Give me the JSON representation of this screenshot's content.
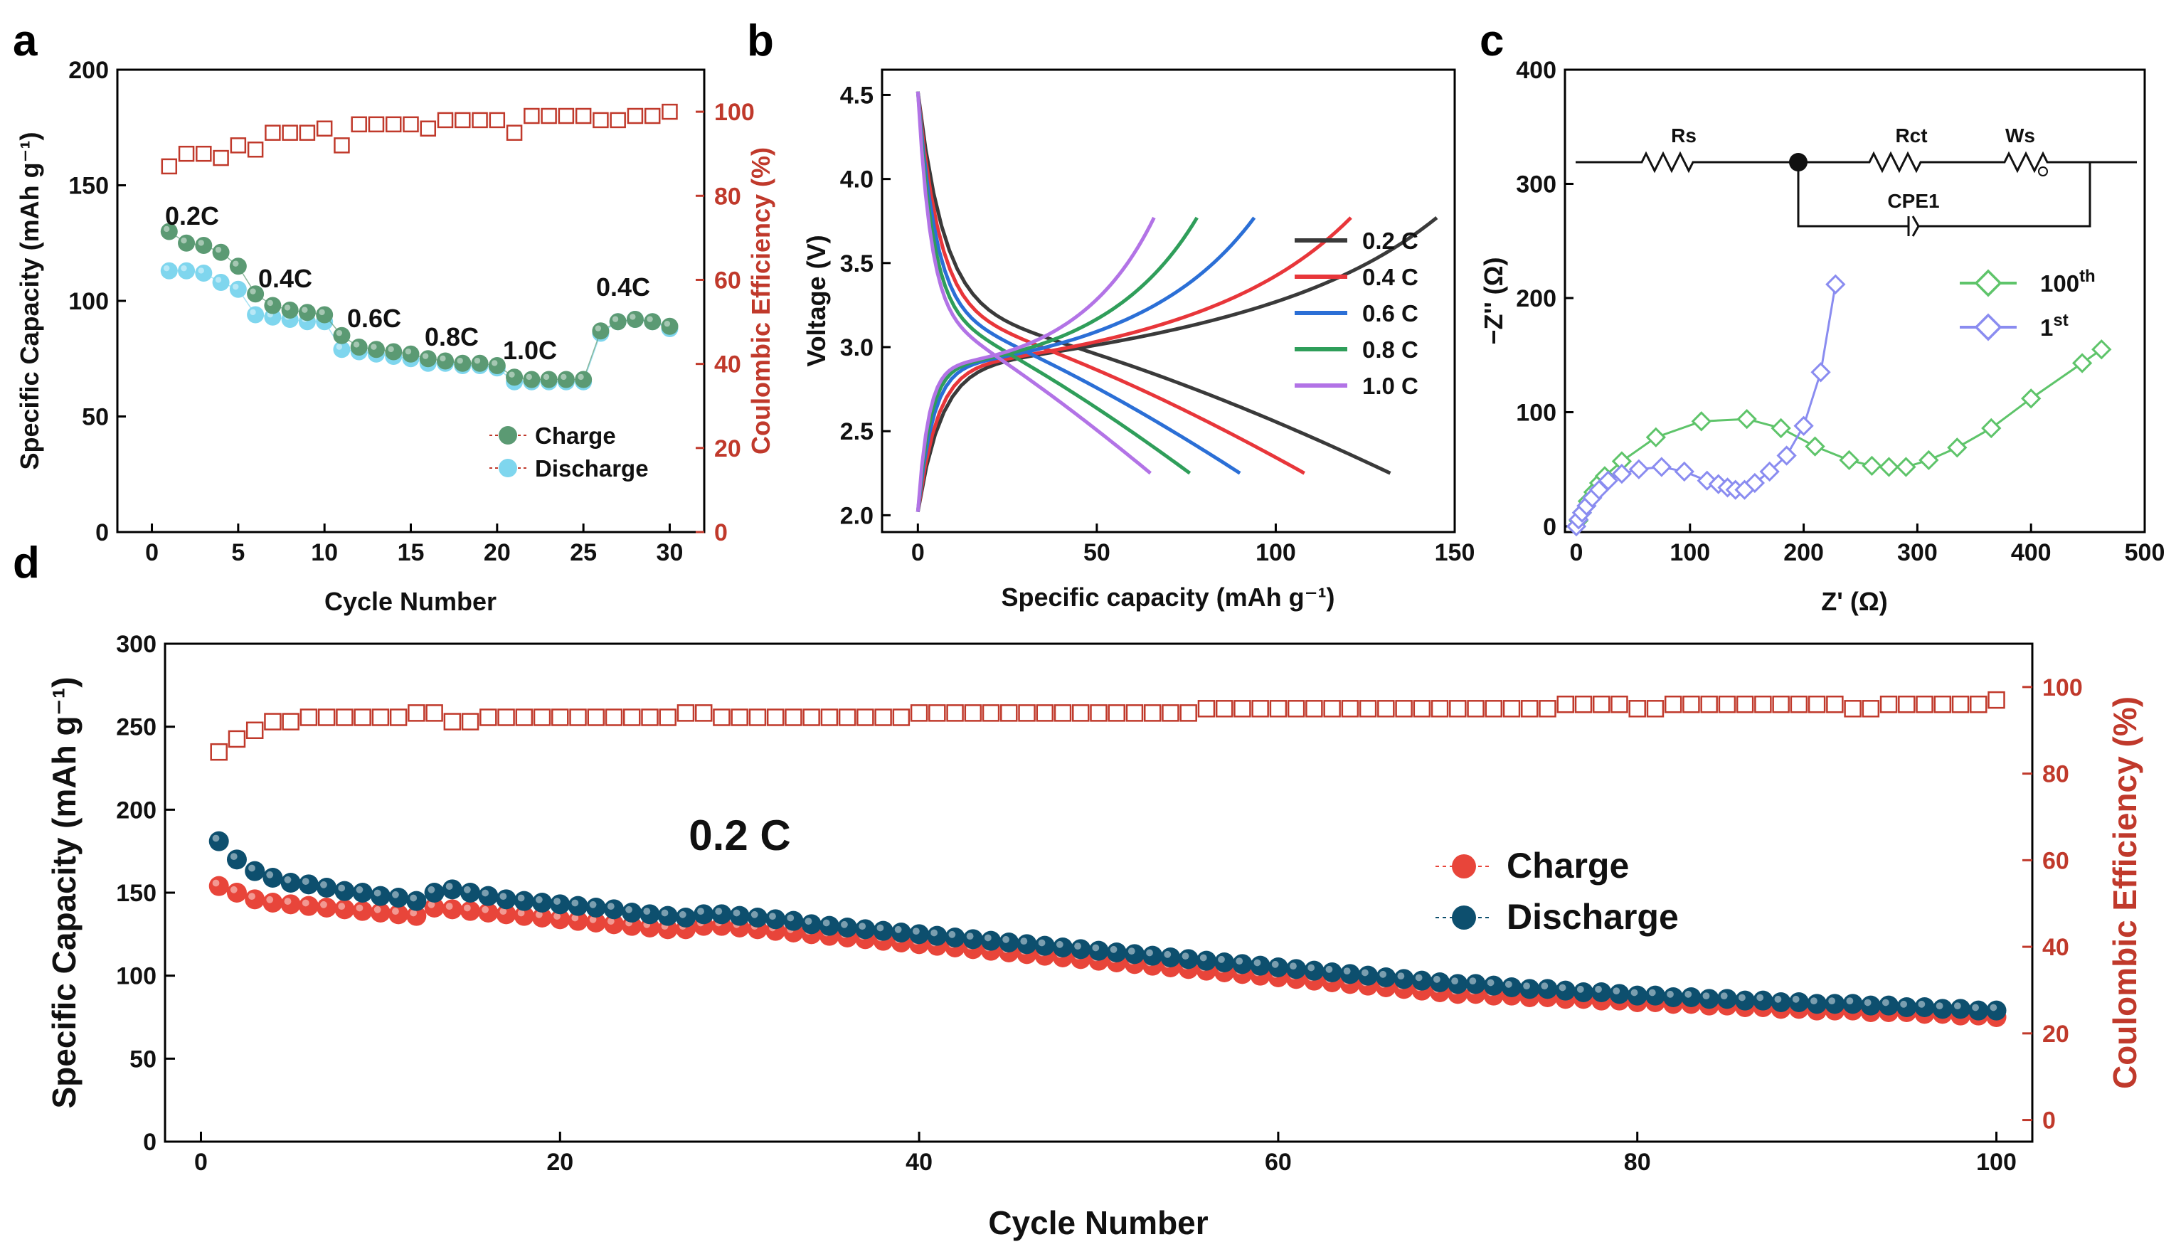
{
  "chart_data": [
    {
      "panel": "a",
      "type": "scatter",
      "xlabel": "Cycle Number",
      "ylabel": "Specific Capacity (mAh g⁻¹)",
      "ylabel_right": "Coulombic Efficiency (%)",
      "xlim": [
        -2,
        32
      ],
      "ylim": [
        0,
        200
      ],
      "ylim_right": [
        0,
        110
      ],
      "xticks": [
        "0",
        "5",
        "10",
        "15",
        "20",
        "25",
        "30"
      ],
      "yticks": [
        "0",
        "50",
        "100",
        "150",
        "200"
      ],
      "yticks_right": [
        "0",
        "20",
        "40",
        "60",
        "80",
        "100"
      ],
      "annotations": [
        "0.2C",
        "0.4C",
        "0.6C",
        "0.8C",
        "1.0C",
        "0.4C"
      ],
      "legend": [
        "Charge",
        "Discharge"
      ],
      "series": [
        {
          "name": "Charge",
          "color": "#5b9a73",
          "x": [
            1,
            2,
            3,
            4,
            5,
            6,
            7,
            8,
            9,
            10,
            11,
            12,
            13,
            14,
            15,
            16,
            17,
            18,
            19,
            20,
            21,
            22,
            23,
            24,
            25,
            26,
            27,
            28,
            29,
            30
          ],
          "values": [
            130,
            125,
            124,
            121,
            115,
            103,
            98,
            96,
            95,
            94,
            85,
            80,
            79,
            78,
            77,
            75,
            74,
            73,
            73,
            72,
            67,
            66,
            66,
            66,
            66,
            87,
            91,
            92,
            91,
            89
          ]
        },
        {
          "name": "Discharge",
          "color": "#7fd6ee",
          "x": [
            1,
            2,
            3,
            4,
            5,
            6,
            7,
            8,
            9,
            10,
            11,
            12,
            13,
            14,
            15,
            16,
            17,
            18,
            19,
            20,
            21,
            22,
            23,
            24,
            25,
            26,
            27,
            28,
            29,
            30
          ],
          "values": [
            113,
            113,
            112,
            108,
            105,
            94,
            93,
            92,
            91,
            91,
            79,
            78,
            77,
            76,
            75,
            73,
            73,
            72,
            72,
            71,
            65,
            65,
            65,
            65,
            65,
            86,
            91,
            92,
            91,
            88
          ]
        },
        {
          "name": "Coulombic Efficiency",
          "color": "#c0392b",
          "axis": "right",
          "x": [
            1,
            2,
            3,
            4,
            5,
            6,
            7,
            8,
            9,
            10,
            11,
            12,
            13,
            14,
            15,
            16,
            17,
            18,
            19,
            20,
            21,
            22,
            23,
            24,
            25,
            26,
            27,
            28,
            29,
            30
          ],
          "values": [
            87,
            90,
            90,
            89,
            92,
            91,
            95,
            95,
            95,
            96,
            92,
            97,
            97,
            97,
            97,
            96,
            98,
            98,
            98,
            98,
            95,
            99,
            99,
            99,
            99,
            98,
            98,
            99,
            99,
            100
          ]
        }
      ]
    },
    {
      "panel": "b",
      "type": "line",
      "xlabel": "Specific capacity (mAh g⁻¹)",
      "ylabel": "Voltage (V)",
      "xlim": [
        -10,
        150
      ],
      "ylim": [
        1.9,
        4.65
      ],
      "xticks": [
        "0",
        "50",
        "100",
        "150"
      ],
      "yticks": [
        "2.0",
        "2.5",
        "3.0",
        "3.5",
        "4.0",
        "4.5"
      ],
      "legend": [
        "0.2 C",
        "0.4 C",
        "0.6 C",
        "0.8 C",
        "1.0 C"
      ],
      "series": [
        {
          "name": "0.2 C",
          "color": "#3a3a3a",
          "charge_capacity": 145,
          "discharge_capacity": 132
        },
        {
          "name": "0.4 C",
          "color": "#e8363a",
          "charge_capacity": 121,
          "discharge_capacity": 108
        },
        {
          "name": "0.6 C",
          "color": "#2b6fd6",
          "charge_capacity": 94,
          "discharge_capacity": 90
        },
        {
          "name": "0.8 C",
          "color": "#2f9e5a",
          "charge_capacity": 78,
          "discharge_capacity": 76
        },
        {
          "name": "1.0 C",
          "color": "#b273e6",
          "charge_capacity": 66,
          "discharge_capacity": 65
        }
      ]
    },
    {
      "panel": "c",
      "type": "scatter",
      "xlabel": "Z' (Ω)",
      "ylabel": "−Z'' (Ω)",
      "xlim": [
        -10,
        500
      ],
      "ylim": [
        -5,
        400
      ],
      "xticks": [
        "0",
        "100",
        "200",
        "300",
        "400",
        "500"
      ],
      "yticks": [
        "0",
        "100",
        "200",
        "300",
        "400"
      ],
      "circuit_labels": [
        "Rs",
        "Rct",
        "Ws",
        "CPE1"
      ],
      "series": [
        {
          "name": "100",
          "superscript": "th",
          "color": "#5ec46a",
          "x": [
            2,
            5,
            10,
            15,
            20,
            25,
            40,
            70,
            110,
            150,
            180,
            210,
            240,
            260,
            275,
            290,
            310,
            335,
            365,
            400,
            445,
            462
          ],
          "values": [
            5,
            12,
            22,
            30,
            38,
            44,
            57,
            78,
            92,
            94,
            86,
            70,
            58,
            53,
            52,
            52,
            58,
            69,
            86,
            112,
            143,
            155
          ]
        },
        {
          "name": "1",
          "superscript": "st",
          "color": "#8a8cf0",
          "x": [
            0,
            2,
            5,
            9,
            14,
            20,
            28,
            40,
            55,
            75,
            95,
            115,
            125,
            133,
            140,
            148,
            157,
            170,
            185,
            200,
            215,
            228
          ],
          "values": [
            0,
            6,
            12,
            18,
            25,
            32,
            40,
            46,
            50,
            52,
            48,
            40,
            37,
            34,
            32,
            32,
            38,
            48,
            62,
            88,
            135,
            212
          ]
        }
      ]
    },
    {
      "panel": "d",
      "type": "scatter",
      "title": "0.2 C",
      "xlabel": "Cycle Number",
      "ylabel": "Specific Capacity (mAh g⁻¹)",
      "ylabel_right": "Coulombic Efficiency (%)",
      "xlim": [
        -2,
        102
      ],
      "ylim": [
        0,
        300
      ],
      "ylim_right": [
        -5,
        110
      ],
      "xticks": [
        "0",
        "20",
        "40",
        "60",
        "80",
        "100"
      ],
      "yticks": [
        "0",
        "50",
        "100",
        "150",
        "200",
        "250",
        "300"
      ],
      "yticks_right": [
        "0",
        "20",
        "40",
        "60",
        "80",
        "100"
      ],
      "legend": [
        "Charge",
        "Discharge"
      ],
      "series": [
        {
          "name": "Charge",
          "color": "#e8453a",
          "x_start": 1,
          "count": 100,
          "values": [
            154,
            150,
            146,
            144,
            143,
            142,
            141,
            140,
            139,
            138,
            137,
            136,
            141,
            140,
            139,
            138,
            137,
            136,
            135,
            134,
            133,
            132,
            131,
            130,
            129,
            128,
            128,
            130,
            130,
            129,
            128,
            127,
            126,
            125,
            124,
            123,
            122,
            121,
            120,
            119,
            118,
            117,
            116,
            115,
            114,
            113,
            112,
            111,
            110,
            109,
            108,
            107,
            106,
            105,
            104,
            103,
            102,
            101,
            100,
            99,
            98,
            97,
            96,
            95,
            94,
            93,
            92,
            91,
            90,
            89,
            89,
            88,
            88,
            87,
            87,
            86,
            86,
            85,
            85,
            84,
            84,
            83,
            83,
            82,
            82,
            81,
            81,
            80,
            80,
            79,
            79,
            79,
            78,
            78,
            78,
            77,
            77,
            76,
            76,
            75
          ]
        },
        {
          "name": "Discharge",
          "color": "#0d4f6e",
          "x_start": 1,
          "count": 100,
          "values": [
            181,
            170,
            163,
            159,
            156,
            155,
            153,
            151,
            150,
            148,
            147,
            145,
            150,
            152,
            150,
            148,
            146,
            145,
            144,
            143,
            142,
            141,
            140,
            138,
            137,
            136,
            135,
            137,
            137,
            136,
            135,
            134,
            133,
            131,
            130,
            129,
            128,
            127,
            126,
            125,
            124,
            123,
            122,
            121,
            120,
            119,
            118,
            117,
            116,
            115,
            114,
            113,
            112,
            111,
            110,
            109,
            108,
            107,
            106,
            105,
            104,
            103,
            102,
            101,
            100,
            99,
            98,
            97,
            96,
            95,
            95,
            94,
            93,
            92,
            92,
            91,
            90,
            90,
            89,
            88,
            88,
            87,
            87,
            86,
            86,
            85,
            85,
            84,
            84,
            83,
            83,
            83,
            82,
            82,
            81,
            81,
            80,
            80,
            79,
            79
          ]
        },
        {
          "name": "Coulombic Efficiency",
          "color": "#c0392b",
          "axis": "right",
          "x_start": 1,
          "count": 100,
          "values": [
            85,
            88,
            90,
            92,
            92,
            93,
            93,
            93,
            93,
            93,
            93,
            94,
            94,
            92,
            92,
            93,
            93,
            93,
            93,
            93,
            93,
            93,
            93,
            93,
            93,
            93,
            94,
            94,
            93,
            93,
            93,
            93,
            93,
            93,
            93,
            93,
            93,
            93,
            93,
            94,
            94,
            94,
            94,
            94,
            94,
            94,
            94,
            94,
            94,
            94,
            94,
            94,
            94,
            94,
            94,
            95,
            95,
            95,
            95,
            95,
            95,
            95,
            95,
            95,
            95,
            95,
            95,
            95,
            95,
            95,
            95,
            95,
            95,
            95,
            95,
            96,
            96,
            96,
            96,
            95,
            95,
            96,
            96,
            96,
            96,
            96,
            96,
            96,
            96,
            96,
            96,
            95,
            95,
            96,
            96,
            96,
            96,
            96,
            96,
            97
          ]
        }
      ]
    }
  ]
}
